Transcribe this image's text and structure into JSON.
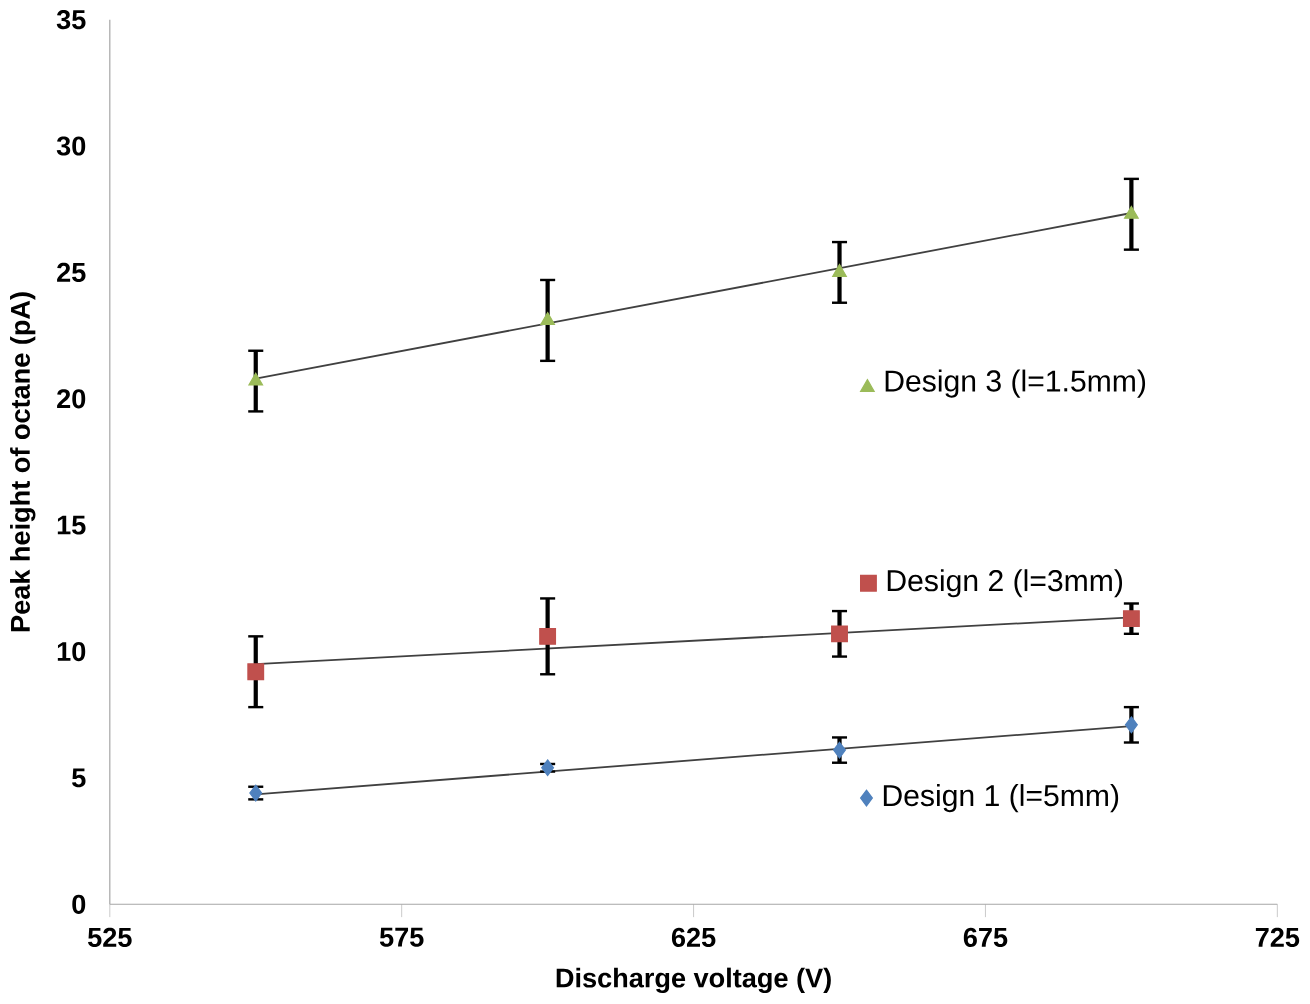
{
  "chart_data": {
    "type": "scatter",
    "xlabel": "Discharge voltage (V)",
    "ylabel": "Peak height of octane (pA)",
    "xlim": [
      525,
      725
    ],
    "xticks": [
      525,
      575,
      625,
      675,
      725
    ],
    "ylim": [
      0,
      35
    ],
    "yticks": [
      0,
      5,
      10,
      15,
      20,
      25,
      30,
      35
    ],
    "grid": false,
    "legend": "right",
    "series": [
      {
        "name": "Design 1 (l=5mm)",
        "color": "#4f81bd",
        "marker": "diamond",
        "x": [
          550,
          600,
          650,
          700
        ],
        "values": [
          4.4,
          5.4,
          6.1,
          7.1
        ],
        "errors": [
          0.25,
          0.15,
          0.5,
          0.7
        ]
      },
      {
        "name": "Design 2 (l=3mm)",
        "color": "#c0504d",
        "marker": "square",
        "x": [
          550,
          600,
          650,
          700
        ],
        "values": [
          9.2,
          10.6,
          10.7,
          11.3
        ],
        "errors": [
          1.4,
          1.5,
          0.9,
          0.6
        ]
      },
      {
        "name": "Design 3 (l=1.5mm)",
        "color": "#9bbb59",
        "marker": "triangle",
        "x": [
          550,
          600,
          650,
          700
        ],
        "values": [
          20.7,
          23.1,
          25.0,
          27.3
        ],
        "errors": [
          1.2,
          1.6,
          1.2,
          1.4
        ]
      },
      {
        "type": "line",
        "color": "#404040",
        "marker": "none",
        "x": [
          550,
          700
        ],
        "values": [
          4.35,
          7.05
        ]
      },
      {
        "type": "line",
        "color": "#404040",
        "marker": "none",
        "x": [
          550,
          700
        ],
        "values": [
          9.5,
          11.35
        ]
      },
      {
        "type": "line",
        "color": "#404040",
        "marker": "none",
        "x": [
          550,
          700
        ],
        "values": [
          20.8,
          27.35
        ]
      }
    ]
  }
}
